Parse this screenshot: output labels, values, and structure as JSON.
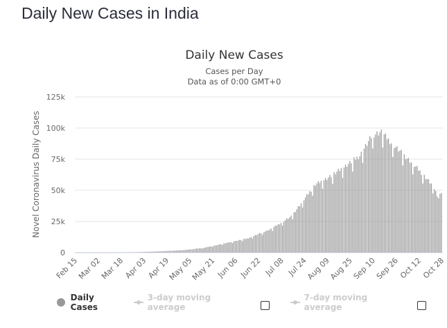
{
  "page": {
    "title": "Daily New Cases in India"
  },
  "chart_data": {
    "type": "bar",
    "title": "Daily New Cases",
    "subtitle": [
      "Cases per Day",
      "Data as of 0:00 GMT+0"
    ],
    "ylabel": "Novel Coronavirus Daily Cases",
    "xlabel": "",
    "ylim": [
      0,
      125000
    ],
    "yticks": [
      0,
      25000,
      50000,
      75000,
      100000,
      125000
    ],
    "ytick_labels": [
      "0",
      "25k",
      "50k",
      "75k",
      "100k",
      "125k"
    ],
    "x_start": "Feb 15",
    "x_end": "Oct 28",
    "xtick_labels": [
      "Feb 15",
      "Mar 02",
      "Mar 18",
      "Apr 03",
      "Apr 19",
      "May 05",
      "May 21",
      "Jun 06",
      "Jun 22",
      "Jul 08",
      "Jul 24",
      "Aug 09",
      "Aug 25",
      "Sep 10",
      "Sep 26",
      "Oct 12",
      "Oct 28"
    ],
    "grid": true,
    "bar_color": "#999999",
    "series": [
      {
        "name": "Daily Cases",
        "visible": true,
        "anchors": [
          [
            "Feb 15",
            0
          ],
          [
            "Mar 15",
            100
          ],
          [
            "Apr 01",
            400
          ],
          [
            "Apr 15",
            1000
          ],
          [
            "May 01",
            2000
          ],
          [
            "May 15",
            3800
          ],
          [
            "Jun 01",
            8000
          ],
          [
            "Jun 15",
            11500
          ],
          [
            "Jul 01",
            19000
          ],
          [
            "Jul 15",
            29000
          ],
          [
            "Aug 01",
            55000
          ],
          [
            "Aug 15",
            64000
          ],
          [
            "Sep 01",
            78000
          ],
          [
            "Sep 10",
            95000
          ],
          [
            "Sep 16",
            97000
          ],
          [
            "Sep 25",
            86000
          ],
          [
            "Oct 05",
            75000
          ],
          [
            "Oct 15",
            63000
          ],
          [
            "Oct 22",
            54000
          ],
          [
            "Oct 26",
            44000
          ],
          [
            "Oct 28",
            49000
          ]
        ]
      },
      {
        "name": "3-day moving average",
        "visible": false
      },
      {
        "name": "7-day moving average",
        "visible": false
      }
    ]
  },
  "legend": {
    "items": [
      {
        "label": "Daily Cases",
        "checkbox": false
      },
      {
        "label": "3-day moving average",
        "checkbox": true,
        "checked": false
      },
      {
        "label": "7-day moving average",
        "checkbox": true,
        "checked": false
      }
    ]
  }
}
